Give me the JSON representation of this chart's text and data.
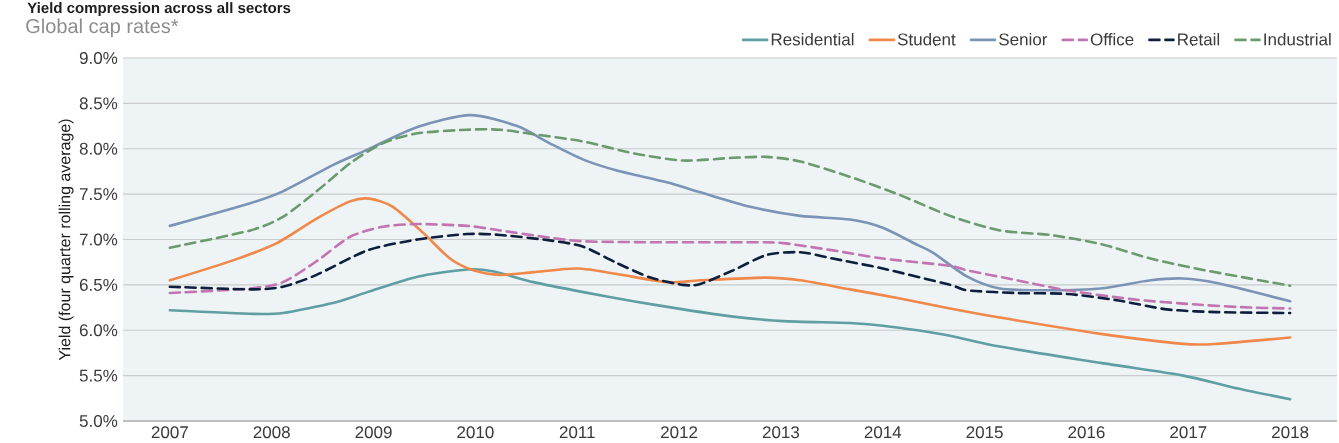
{
  "chart_data": {
    "type": "line",
    "title": "Yield compression across all sectors",
    "subtitle": "Global cap rates*",
    "ylabel": "Yield (four quarter rolling average)",
    "xlim": [
      2006.54,
      2018.46
    ],
    "ylim": [
      5,
      9
    ],
    "xticks": [
      2007,
      2008,
      2009,
      2010,
      2011,
      2012,
      2013,
      2014,
      2015,
      2016,
      2017,
      2018
    ],
    "yticks": [
      {
        "value": 5,
        "label": "5.0%"
      },
      {
        "value": 5.5,
        "label": "5.5%"
      },
      {
        "value": 6,
        "label": "6.0%"
      },
      {
        "value": 6.5,
        "label": "6.5%"
      },
      {
        "value": 7,
        "label": "7.0%"
      },
      {
        "value": 7.5,
        "label": "7.5%"
      },
      {
        "value": 8,
        "label": "8.0%"
      },
      {
        "value": 8.5,
        "label": "8.5%"
      },
      {
        "value": 9,
        "label": "9.0%"
      }
    ],
    "grid": "y",
    "legend": "top right",
    "series": [
      {
        "name": "Residential",
        "color": "#5f9ea3",
        "line_style": "solid",
        "x": [
          2007.0,
          2007.82,
          2008.11,
          2008.6,
          2008.94,
          2009.43,
          2009.92,
          2010.17,
          2010.57,
          2011.06,
          2011.55,
          2012.04,
          2012.53,
          2013.02,
          2013.68,
          2014.0,
          2014.34,
          2014.66,
          2015.15,
          2016.14,
          2016.95,
          2017.44,
          2018.0
        ],
        "values": [
          6.22,
          6.18,
          6.19,
          6.3,
          6.42,
          6.59,
          6.67,
          6.65,
          6.53,
          6.42,
          6.32,
          6.23,
          6.15,
          6.1,
          6.08,
          6.05,
          6.0,
          5.94,
          5.82,
          5.64,
          5.5,
          5.37,
          5.24
        ]
      },
      {
        "name": "Student",
        "color": "#f0884a",
        "line_style": "solid",
        "x": [
          2007.0,
          2007.62,
          2008.05,
          2008.44,
          2008.77,
          2008.96,
          2009.19,
          2009.49,
          2009.75,
          2009.98,
          2010.24,
          2010.57,
          2011.0,
          2011.39,
          2011.88,
          2012.21,
          2012.86,
          2013.19,
          2013.68,
          2014.17,
          2014.66,
          2015.15,
          2016.14,
          2016.95,
          2017.28,
          2018.0
        ],
        "values": [
          6.55,
          6.77,
          6.96,
          7.23,
          7.42,
          7.45,
          7.36,
          7.07,
          6.79,
          6.66,
          6.61,
          6.64,
          6.68,
          6.62,
          6.53,
          6.55,
          6.58,
          6.55,
          6.45,
          6.35,
          6.24,
          6.14,
          5.96,
          5.85,
          5.85,
          5.92
        ]
      },
      {
        "name": "Senior",
        "color": "#7b94b6",
        "line_style": "solid",
        "x": [
          2007.0,
          2007.79,
          2008.11,
          2008.6,
          2008.94,
          2009.43,
          2009.95,
          2010.41,
          2010.73,
          2011.06,
          2011.39,
          2011.88,
          2012.21,
          2012.7,
          2013.19,
          2013.68,
          2014.0,
          2014.34,
          2014.5,
          2014.83,
          2015.15,
          2015.64,
          2016.14,
          2016.63,
          2016.95,
          2017.28,
          2018.0
        ],
        "values": [
          7.15,
          7.4,
          7.53,
          7.82,
          7.99,
          8.24,
          8.37,
          8.25,
          8.06,
          7.88,
          7.76,
          7.63,
          7.52,
          7.36,
          7.26,
          7.22,
          7.13,
          6.94,
          6.85,
          6.59,
          6.46,
          6.44,
          6.46,
          6.55,
          6.57,
          6.52,
          6.32
        ]
      },
      {
        "name": "Office",
        "color": "#c274b0",
        "line_style": "dashed",
        "x": [
          2007.0,
          2007.79,
          2008.11,
          2008.44,
          2008.77,
          2009.09,
          2009.43,
          2009.92,
          2010.24,
          2010.73,
          2011.06,
          2011.72,
          2012.7,
          2013.02,
          2013.51,
          2014.0,
          2014.66,
          2014.83,
          2015.32,
          2015.81,
          2016.46,
          2017.12,
          2017.61,
          2018.0
        ],
        "values": [
          6.41,
          6.46,
          6.53,
          6.76,
          7.03,
          7.14,
          7.17,
          7.15,
          7.1,
          7.02,
          6.98,
          6.97,
          6.97,
          6.96,
          6.88,
          6.79,
          6.71,
          6.66,
          6.55,
          6.44,
          6.34,
          6.28,
          6.25,
          6.24
        ]
      },
      {
        "name": "Retail",
        "color": "#0e1f3d",
        "line_style": "dashed",
        "x": [
          2007.0,
          2007.79,
          2008.11,
          2008.44,
          2008.94,
          2009.43,
          2009.92,
          2010.24,
          2010.73,
          2011.06,
          2011.39,
          2011.72,
          2012.04,
          2012.21,
          2012.53,
          2012.86,
          2013.19,
          2013.51,
          2014.0,
          2014.66,
          2014.83,
          2015.32,
          2015.81,
          2016.3,
          2016.79,
          2017.28,
          2018.0
        ],
        "values": [
          6.48,
          6.45,
          6.48,
          6.61,
          6.88,
          7.0,
          7.06,
          7.05,
          6.99,
          6.92,
          6.74,
          6.58,
          6.5,
          6.51,
          6.66,
          6.83,
          6.86,
          6.79,
          6.68,
          6.5,
          6.44,
          6.41,
          6.4,
          6.33,
          6.23,
          6.2,
          6.19
        ]
      },
      {
        "name": "Industrial",
        "color": "#6c9a6f",
        "line_style": "dashed",
        "x": [
          2007.0,
          2007.79,
          2008.11,
          2008.44,
          2008.77,
          2009.09,
          2009.43,
          2009.92,
          2010.24,
          2010.57,
          2011.06,
          2011.55,
          2012.04,
          2012.53,
          2012.86,
          2013.19,
          2013.68,
          2014.17,
          2014.66,
          2015.15,
          2015.64,
          2016.14,
          2016.63,
          2017.12,
          2018.0
        ],
        "values": [
          6.91,
          7.1,
          7.25,
          7.53,
          7.84,
          8.06,
          8.17,
          8.21,
          8.21,
          8.16,
          8.08,
          7.95,
          7.87,
          7.9,
          7.91,
          7.86,
          7.69,
          7.49,
          7.26,
          7.1,
          7.05,
          6.95,
          6.79,
          6.67,
          6.49
        ]
      }
    ]
  }
}
